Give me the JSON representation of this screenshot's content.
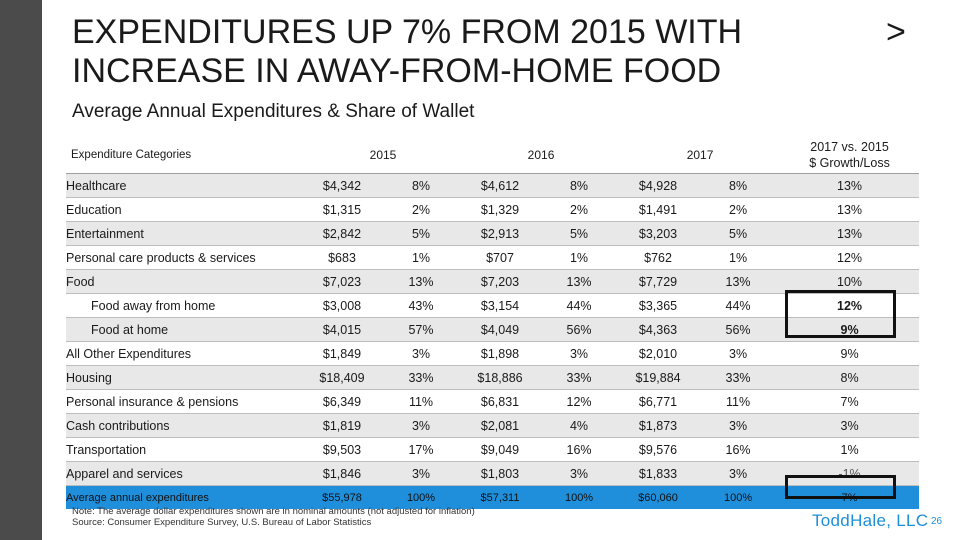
{
  "slide": {
    "title": "EXPENDITURES UP 7% FROM 2015 WITH INCREASE IN AWAY-FROM-HOME FOOD",
    "title_arrow": ">",
    "subtitle": "Average Annual Expenditures & Share of Wallet",
    "page_number": "26",
    "brand": "ToddHale, LLC",
    "note_line1": "Note: The average dollar expenditures shown are in nominal amounts (not adjusted for inflation)",
    "note_line2": "Source: Consumer Expenditure Survey, U.S. Bureau of Labor Statistics",
    "accent_color": "#1f8fdc"
  },
  "table": {
    "headers": {
      "category": "Expenditure Categories",
      "y2015": "2015",
      "y2016": "2016",
      "y2017": "2017",
      "growth_line1": "2017 vs. 2015",
      "growth_line2": "$ Growth/Loss"
    },
    "rows": [
      {
        "cat": "Healthcare",
        "v15": "$4,342",
        "p15": "8%",
        "v16": "$4,612",
        "p16": "8%",
        "v17": "$4,928",
        "p17": "8%",
        "growth": "13%"
      },
      {
        "cat": "Education",
        "v15": "$1,315",
        "p15": "2%",
        "v16": "$1,329",
        "p16": "2%",
        "v17": "$1,491",
        "p17": "2%",
        "growth": "13%"
      },
      {
        "cat": "Entertainment",
        "v15": "$2,842",
        "p15": "5%",
        "v16": "$2,913",
        "p16": "5%",
        "v17": "$3,203",
        "p17": "5%",
        "growth": "13%"
      },
      {
        "cat": "Personal care products & services",
        "v15": "$683",
        "p15": "1%",
        "v16": "$707",
        "p16": "1%",
        "v17": "$762",
        "p17": "1%",
        "growth": "12%"
      },
      {
        "cat": "Food",
        "v15": "$7,023",
        "p15": "13%",
        "v16": "$7,203",
        "p16": "13%",
        "v17": "$7,729",
        "p17": "13%",
        "growth": "10%"
      },
      {
        "cat": "Food away from home",
        "v15": "$3,008",
        "p15": "43%",
        "v16": "$3,154",
        "p16": "44%",
        "v17": "$3,365",
        "p17": "44%",
        "growth": "12%"
      },
      {
        "cat": "Food at home",
        "v15": "$4,015",
        "p15": "57%",
        "v16": "$4,049",
        "p16": "56%",
        "v17": "$4,363",
        "p17": "56%",
        "growth": "9%"
      },
      {
        "cat": "All Other Expenditures",
        "v15": "$1,849",
        "p15": "3%",
        "v16": "$1,898",
        "p16": "3%",
        "v17": "$2,010",
        "p17": "3%",
        "growth": "9%"
      },
      {
        "cat": "Housing",
        "v15": "$18,409",
        "p15": "33%",
        "v16": "$18,886",
        "p16": "33%",
        "v17": "$19,884",
        "p17": "33%",
        "growth": "8%"
      },
      {
        "cat": "Personal insurance & pensions",
        "v15": "$6,349",
        "p15": "11%",
        "v16": "$6,831",
        "p16": "12%",
        "v17": "$6,771",
        "p17": "11%",
        "growth": "7%"
      },
      {
        "cat": "Cash contributions",
        "v15": "$1,819",
        "p15": "3%",
        "v16": "$2,081",
        "p16": "4%",
        "v17": "$1,873",
        "p17": "3%",
        "growth": "3%"
      },
      {
        "cat": "Transportation",
        "v15": "$9,503",
        "p15": "17%",
        "v16": "$9,049",
        "p16": "16%",
        "v17": "$9,576",
        "p17": "16%",
        "growth": "1%"
      },
      {
        "cat": "Apparel and services",
        "v15": "$1,846",
        "p15": "3%",
        "v16": "$1,803",
        "p16": "3%",
        "v17": "$1,833",
        "p17": "3%",
        "growth": "-1%"
      }
    ],
    "total": {
      "cat": "Average annual expenditures",
      "v15": "$55,978",
      "p15": "100%",
      "v16": "$57,311",
      "p16": "100%",
      "v17": "$60,060",
      "p17": "100%",
      "growth": "7%"
    }
  }
}
